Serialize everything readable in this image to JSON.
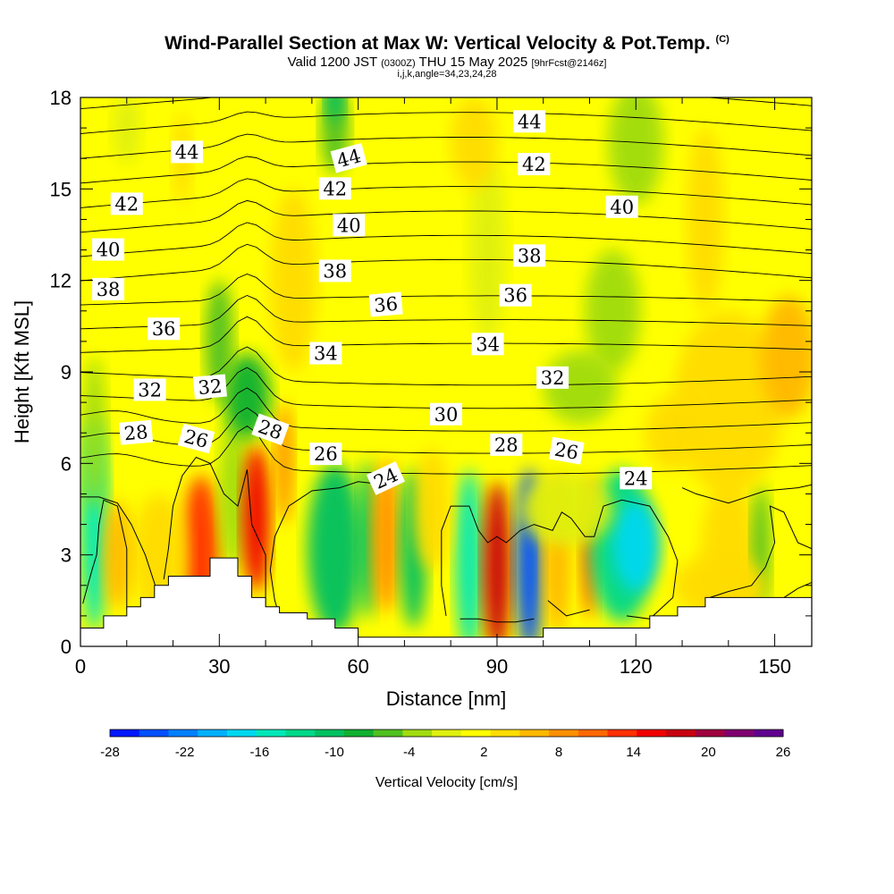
{
  "title": {
    "main": "Wind-Parallel Section at Max W: Vertical Velocity & Pot.Temp.",
    "copyright": "(C)",
    "valid_prefix": "Valid 1200 JST",
    "utc_time": "(0300Z)",
    "valid_date": "THU 15 May 2025",
    "forecast": "[9hrFcst@2146z]",
    "indices": "i,j,k,angle=34,23,24,28"
  },
  "chart_data": {
    "type": "heatmap",
    "xlabel": "Distance [nm]",
    "ylabel": "Height [Kft MSL]",
    "xlim": [
      0,
      158
    ],
    "ylim": [
      0,
      18
    ],
    "xticks": [
      0,
      30,
      60,
      90,
      120,
      150
    ],
    "yticks": [
      0,
      3,
      6,
      9,
      12,
      15,
      18
    ],
    "colorbar": {
      "label": "Vertical Velocity [cm/s]",
      "ticks": [
        "-28",
        "-22",
        "-16",
        "-10",
        "-4",
        "2",
        "8",
        "14",
        "20",
        "26"
      ],
      "range": [
        -28,
        26
      ],
      "colors": [
        "#0018ff",
        "#0050ff",
        "#0080ff",
        "#00b0ff",
        "#00d8f0",
        "#00e8b8",
        "#00d888",
        "#00c060",
        "#10b030",
        "#50c020",
        "#a0dc10",
        "#e0f010",
        "#ffff00",
        "#ffdc00",
        "#ffb800",
        "#ff9000",
        "#ff6800",
        "#ff3000",
        "#f00000",
        "#c80010",
        "#a00040",
        "#800070",
        "#600090"
      ]
    },
    "theta_contours": {
      "units": "Pot.Temp.",
      "labels": [
        {
          "text": "44",
          "x": 23,
          "y": 16.2,
          "angle": 0
        },
        {
          "text": "44",
          "x": 58,
          "y": 16.0,
          "angle": -15
        },
        {
          "text": "44",
          "x": 97,
          "y": 17.2,
          "angle": 0
        },
        {
          "text": "42",
          "x": 10,
          "y": 14.5,
          "angle": 0
        },
        {
          "text": "42",
          "x": 55,
          "y": 15.0,
          "angle": 0
        },
        {
          "text": "42",
          "x": 98,
          "y": 15.8,
          "angle": 0
        },
        {
          "text": "40",
          "x": 6,
          "y": 13.0,
          "angle": 0
        },
        {
          "text": "40",
          "x": 58,
          "y": 13.8,
          "angle": 0
        },
        {
          "text": "40",
          "x": 117,
          "y": 14.4,
          "angle": 0
        },
        {
          "text": "38",
          "x": 6,
          "y": 11.7,
          "angle": 0
        },
        {
          "text": "38",
          "x": 55,
          "y": 12.3,
          "angle": 0
        },
        {
          "text": "38",
          "x": 97,
          "y": 12.8,
          "angle": 0
        },
        {
          "text": "36",
          "x": 18,
          "y": 10.4,
          "angle": 0
        },
        {
          "text": "36",
          "x": 66,
          "y": 11.2,
          "angle": -5
        },
        {
          "text": "36",
          "x": 94,
          "y": 11.5,
          "angle": 0
        },
        {
          "text": "34",
          "x": 53,
          "y": 9.6,
          "angle": 0
        },
        {
          "text": "34",
          "x": 88,
          "y": 9.9,
          "angle": 0
        },
        {
          "text": "32",
          "x": 15,
          "y": 8.4,
          "angle": 0
        },
        {
          "text": "32",
          "x": 28,
          "y": 8.5,
          "angle": -5
        },
        {
          "text": "32",
          "x": 102,
          "y": 8.8,
          "angle": 0
        },
        {
          "text": "30",
          "x": 79,
          "y": 7.6,
          "angle": 0
        },
        {
          "text": "28",
          "x": 12,
          "y": 7.0,
          "angle": -5
        },
        {
          "text": "28",
          "x": 41,
          "y": 7.1,
          "angle": 20
        },
        {
          "text": "28",
          "x": 92,
          "y": 6.6,
          "angle": 0
        },
        {
          "text": "26",
          "x": 25,
          "y": 6.8,
          "angle": 15
        },
        {
          "text": "26",
          "x": 53,
          "y": 6.3,
          "angle": 0
        },
        {
          "text": "26",
          "x": 105,
          "y": 6.4,
          "angle": 10
        },
        {
          "text": "24",
          "x": 66,
          "y": 5.5,
          "angle": -25
        },
        {
          "text": "24",
          "x": 120,
          "y": 5.5,
          "angle": 0
        }
      ]
    }
  }
}
